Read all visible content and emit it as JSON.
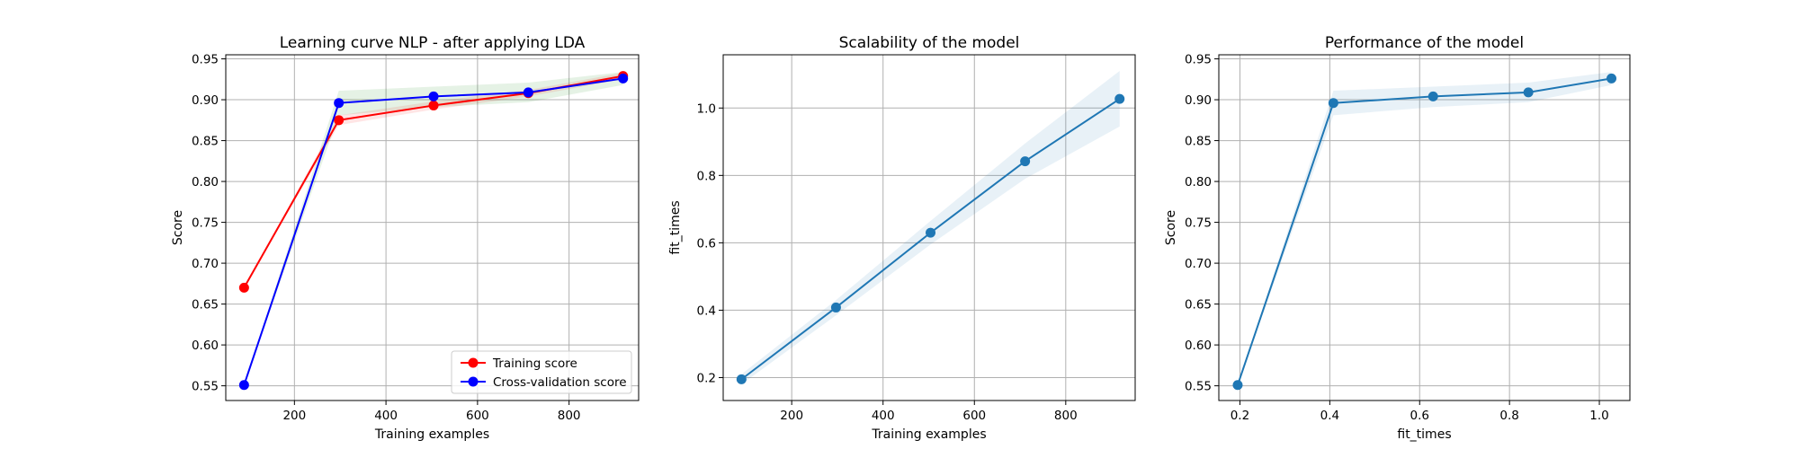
{
  "colors": {
    "training": "#ff0000",
    "cross_validation": "#0000ff",
    "model": "#1f77b4",
    "band_model": "#1f77b4",
    "band_training": "#ff0000",
    "band_cv": "#008000"
  },
  "chart_data": [
    {
      "type": "line",
      "title": "Learning curve NLP - after applying LDA",
      "xlabel": "Training examples",
      "ylabel": "Score",
      "xlim": [
        50,
        952
      ],
      "ylim": [
        0.532,
        0.955
      ],
      "xticks": [
        200,
        400,
        600,
        800
      ],
      "xtick_labels": [
        "200",
        "400",
        "600",
        "800"
      ],
      "yticks": [
        0.55,
        0.6,
        0.65,
        0.7,
        0.75,
        0.8,
        0.85,
        0.9,
        0.95
      ],
      "ytick_labels": [
        "0.55",
        "0.60",
        "0.65",
        "0.70",
        "0.75",
        "0.80",
        "0.85",
        "0.90",
        "0.95"
      ],
      "grid": true,
      "legend": "lower-right",
      "x": [
        90,
        297,
        504,
        711,
        918
      ],
      "series": [
        {
          "name": "Training score",
          "color": "training",
          "values": [
            0.67,
            0.875,
            0.893,
            0.908,
            0.929
          ],
          "band_lower": [
            0.67,
            0.869,
            0.888,
            0.904,
            0.925
          ],
          "band_upper": [
            0.67,
            0.881,
            0.898,
            0.912,
            0.933
          ]
        },
        {
          "name": "Cross-validation score",
          "color": "cross_validation",
          "values": [
            0.551,
            0.896,
            0.904,
            0.909,
            0.926
          ],
          "band_lower": [
            0.551,
            0.881,
            0.891,
            0.897,
            0.918
          ],
          "band_upper": [
            0.551,
            0.911,
            0.916,
            0.921,
            0.934
          ]
        }
      ]
    },
    {
      "type": "line",
      "title": "Scalability of the model",
      "xlabel": "Training examples",
      "ylabel": "fit_times",
      "xlim": [
        50,
        952
      ],
      "ylim": [
        0.132,
        1.158
      ],
      "xticks": [
        200,
        400,
        600,
        800
      ],
      "xtick_labels": [
        "200",
        "400",
        "600",
        "800"
      ],
      "yticks": [
        0.2,
        0.4,
        0.6,
        0.8,
        1.0
      ],
      "ytick_labels": [
        "0.2",
        "0.4",
        "0.6",
        "0.8",
        "1.0"
      ],
      "grid": true,
      "x": [
        90,
        297,
        504,
        711,
        918
      ],
      "series": [
        {
          "name": "",
          "color": "model",
          "values": [
            0.195,
            0.408,
            0.63,
            0.842,
            1.027
          ],
          "band_lower": [
            0.18,
            0.385,
            0.595,
            0.79,
            0.945
          ],
          "band_upper": [
            0.21,
            0.43,
            0.665,
            0.895,
            1.11
          ]
        }
      ]
    },
    {
      "type": "line",
      "title": "Performance of the model",
      "xlabel": "fit_times",
      "ylabel": "Score",
      "xlim": [
        0.153,
        1.068
      ],
      "ylim": [
        0.532,
        0.955
      ],
      "xticks": [
        0.2,
        0.4,
        0.6,
        0.8,
        1.0
      ],
      "xtick_labels": [
        "0.2",
        "0.4",
        "0.6",
        "0.8",
        "1.0"
      ],
      "yticks": [
        0.55,
        0.6,
        0.65,
        0.7,
        0.75,
        0.8,
        0.85,
        0.9,
        0.95
      ],
      "ytick_labels": [
        "0.55",
        "0.60",
        "0.65",
        "0.70",
        "0.75",
        "0.80",
        "0.85",
        "0.90",
        "0.95"
      ],
      "grid": true,
      "x": [
        0.195,
        0.408,
        0.63,
        0.842,
        1.027
      ],
      "series": [
        {
          "name": "",
          "color": "model",
          "values": [
            0.551,
            0.896,
            0.904,
            0.909,
            0.926
          ],
          "band_lower": [
            0.551,
            0.881,
            0.891,
            0.897,
            0.918
          ],
          "band_upper": [
            0.551,
            0.911,
            0.916,
            0.921,
            0.934
          ]
        }
      ]
    }
  ]
}
